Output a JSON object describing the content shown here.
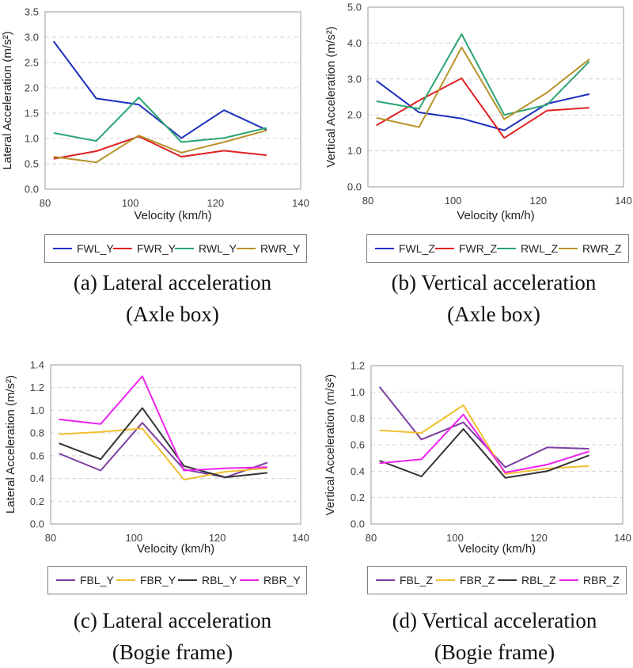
{
  "chart_data": [
    {
      "id": "a",
      "type": "line",
      "xlabel": "Velocity (km/h)",
      "ylabel": "Lateral Acceleration (m/s²)",
      "xlim": [
        80,
        140
      ],
      "ylim": [
        0,
        3.5
      ],
      "xticks": [
        "80",
        "100",
        "120",
        "140"
      ],
      "yticks": [
        "0.0",
        "0.5",
        "1.0",
        "1.5",
        "2.0",
        "2.5",
        "3.0",
        "3.5"
      ],
      "x": [
        82,
        92,
        102,
        112,
        122,
        132
      ],
      "series": [
        {
          "name": "FWL_Y",
          "color": "#1f2fbf",
          "values": [
            2.92,
            1.79,
            1.67,
            1.01,
            1.56,
            1.17
          ]
        },
        {
          "name": "FWR_Y",
          "color": "#e02020",
          "values": [
            0.6,
            0.75,
            1.04,
            0.64,
            0.76,
            0.67
          ]
        },
        {
          "name": "RWL_Y",
          "color": "#2aa672",
          "values": [
            1.11,
            0.95,
            1.81,
            0.93,
            1.01,
            1.21
          ]
        },
        {
          "name": "RWR_Y",
          "color": "#b8922a",
          "values": [
            0.64,
            0.53,
            1.06,
            0.72,
            0.93,
            1.16
          ]
        }
      ],
      "caption_line1": "(a) Lateral acceleration",
      "caption_line2": "(Axle box)",
      "grid": true
    },
    {
      "id": "b",
      "type": "line",
      "xlabel": "Velocity (km/h)",
      "ylabel": "Vertical Acceleration (m/s²)",
      "xlim": [
        80,
        140
      ],
      "ylim": [
        0,
        5
      ],
      "xticks": [
        "80",
        "100",
        "120",
        "140"
      ],
      "yticks": [
        "0.0",
        "1.0",
        "2.0",
        "3.0",
        "4.0",
        "5.0"
      ],
      "x": [
        82,
        92,
        102,
        112,
        122,
        132
      ],
      "series": [
        {
          "name": "FWL_Z",
          "color": "#1f2fbf",
          "values": [
            2.95,
            2.07,
            1.9,
            1.57,
            2.31,
            2.58
          ]
        },
        {
          "name": "FWR_Z",
          "color": "#e02020",
          "values": [
            1.71,
            2.4,
            3.02,
            1.36,
            2.12,
            2.2
          ]
        },
        {
          "name": "RWL_Z",
          "color": "#2aa672",
          "values": [
            2.38,
            2.17,
            4.25,
            2.0,
            2.28,
            3.49
          ]
        },
        {
          "name": "RWR_Z",
          "color": "#b8922a",
          "values": [
            1.92,
            1.66,
            3.88,
            1.88,
            2.62,
            3.55
          ]
        }
      ],
      "caption_line1": "(b) Vertical acceleration",
      "caption_line2": "(Axle box)",
      "grid": true
    },
    {
      "id": "c",
      "type": "line",
      "xlabel": "Velocity (km/h)",
      "ylabel": "Lateral Acceleration (m/s²)",
      "xlim": [
        80,
        140
      ],
      "ylim": [
        0,
        1.4
      ],
      "xticks": [
        "80",
        "100",
        "120",
        "140"
      ],
      "yticks": [
        "0.0",
        "0.2",
        "0.4",
        "0.6",
        "0.8",
        "1.0",
        "1.2",
        "1.4"
      ],
      "x": [
        82,
        92,
        102,
        112,
        122,
        132
      ],
      "series": [
        {
          "name": "FBL_Y",
          "color": "#7b3fa0",
          "values": [
            0.62,
            0.47,
            0.89,
            0.48,
            0.41,
            0.54
          ]
        },
        {
          "name": "FBR_Y",
          "color": "#f0c030",
          "values": [
            0.79,
            0.81,
            0.84,
            0.39,
            0.46,
            0.49
          ]
        },
        {
          "name": "RBL_Y",
          "color": "#333333",
          "values": [
            0.71,
            0.57,
            1.02,
            0.51,
            0.41,
            0.45
          ]
        },
        {
          "name": "RBR_Y",
          "color": "#ee22ee",
          "values": [
            0.92,
            0.88,
            1.3,
            0.47,
            0.49,
            0.5
          ]
        }
      ],
      "caption_line1": "(c) Lateral acceleration",
      "caption_line2": "(Bogie frame)",
      "grid": true
    },
    {
      "id": "d",
      "type": "line",
      "xlabel": "Velocity (km/h)",
      "ylabel": "Vertical Acceleration (m/s²)",
      "xlim": [
        80,
        140
      ],
      "ylim": [
        0,
        1.2
      ],
      "xticks": [
        "80",
        "100",
        "120",
        "140"
      ],
      "yticks": [
        "0.0",
        "0.2",
        "0.4",
        "0.6",
        "0.8",
        "1.0",
        "1.2"
      ],
      "x": [
        82,
        92,
        102,
        112,
        122,
        132
      ],
      "series": [
        {
          "name": "FBL_Z",
          "color": "#7b3fa0",
          "values": [
            1.04,
            0.64,
            0.77,
            0.43,
            0.58,
            0.57
          ]
        },
        {
          "name": "FBR_Z",
          "color": "#f0c030",
          "values": [
            0.71,
            0.69,
            0.9,
            0.38,
            0.42,
            0.44
          ]
        },
        {
          "name": "RBL_Z",
          "color": "#333333",
          "values": [
            0.48,
            0.36,
            0.72,
            0.35,
            0.4,
            0.52
          ]
        },
        {
          "name": "RBR_Z",
          "color": "#ee22ee",
          "values": [
            0.46,
            0.49,
            0.83,
            0.39,
            0.45,
            0.55
          ]
        }
      ],
      "caption_line1": "(d) Vertical acceleration",
      "caption_line2": "(Bogie frame)",
      "grid": true
    }
  ]
}
